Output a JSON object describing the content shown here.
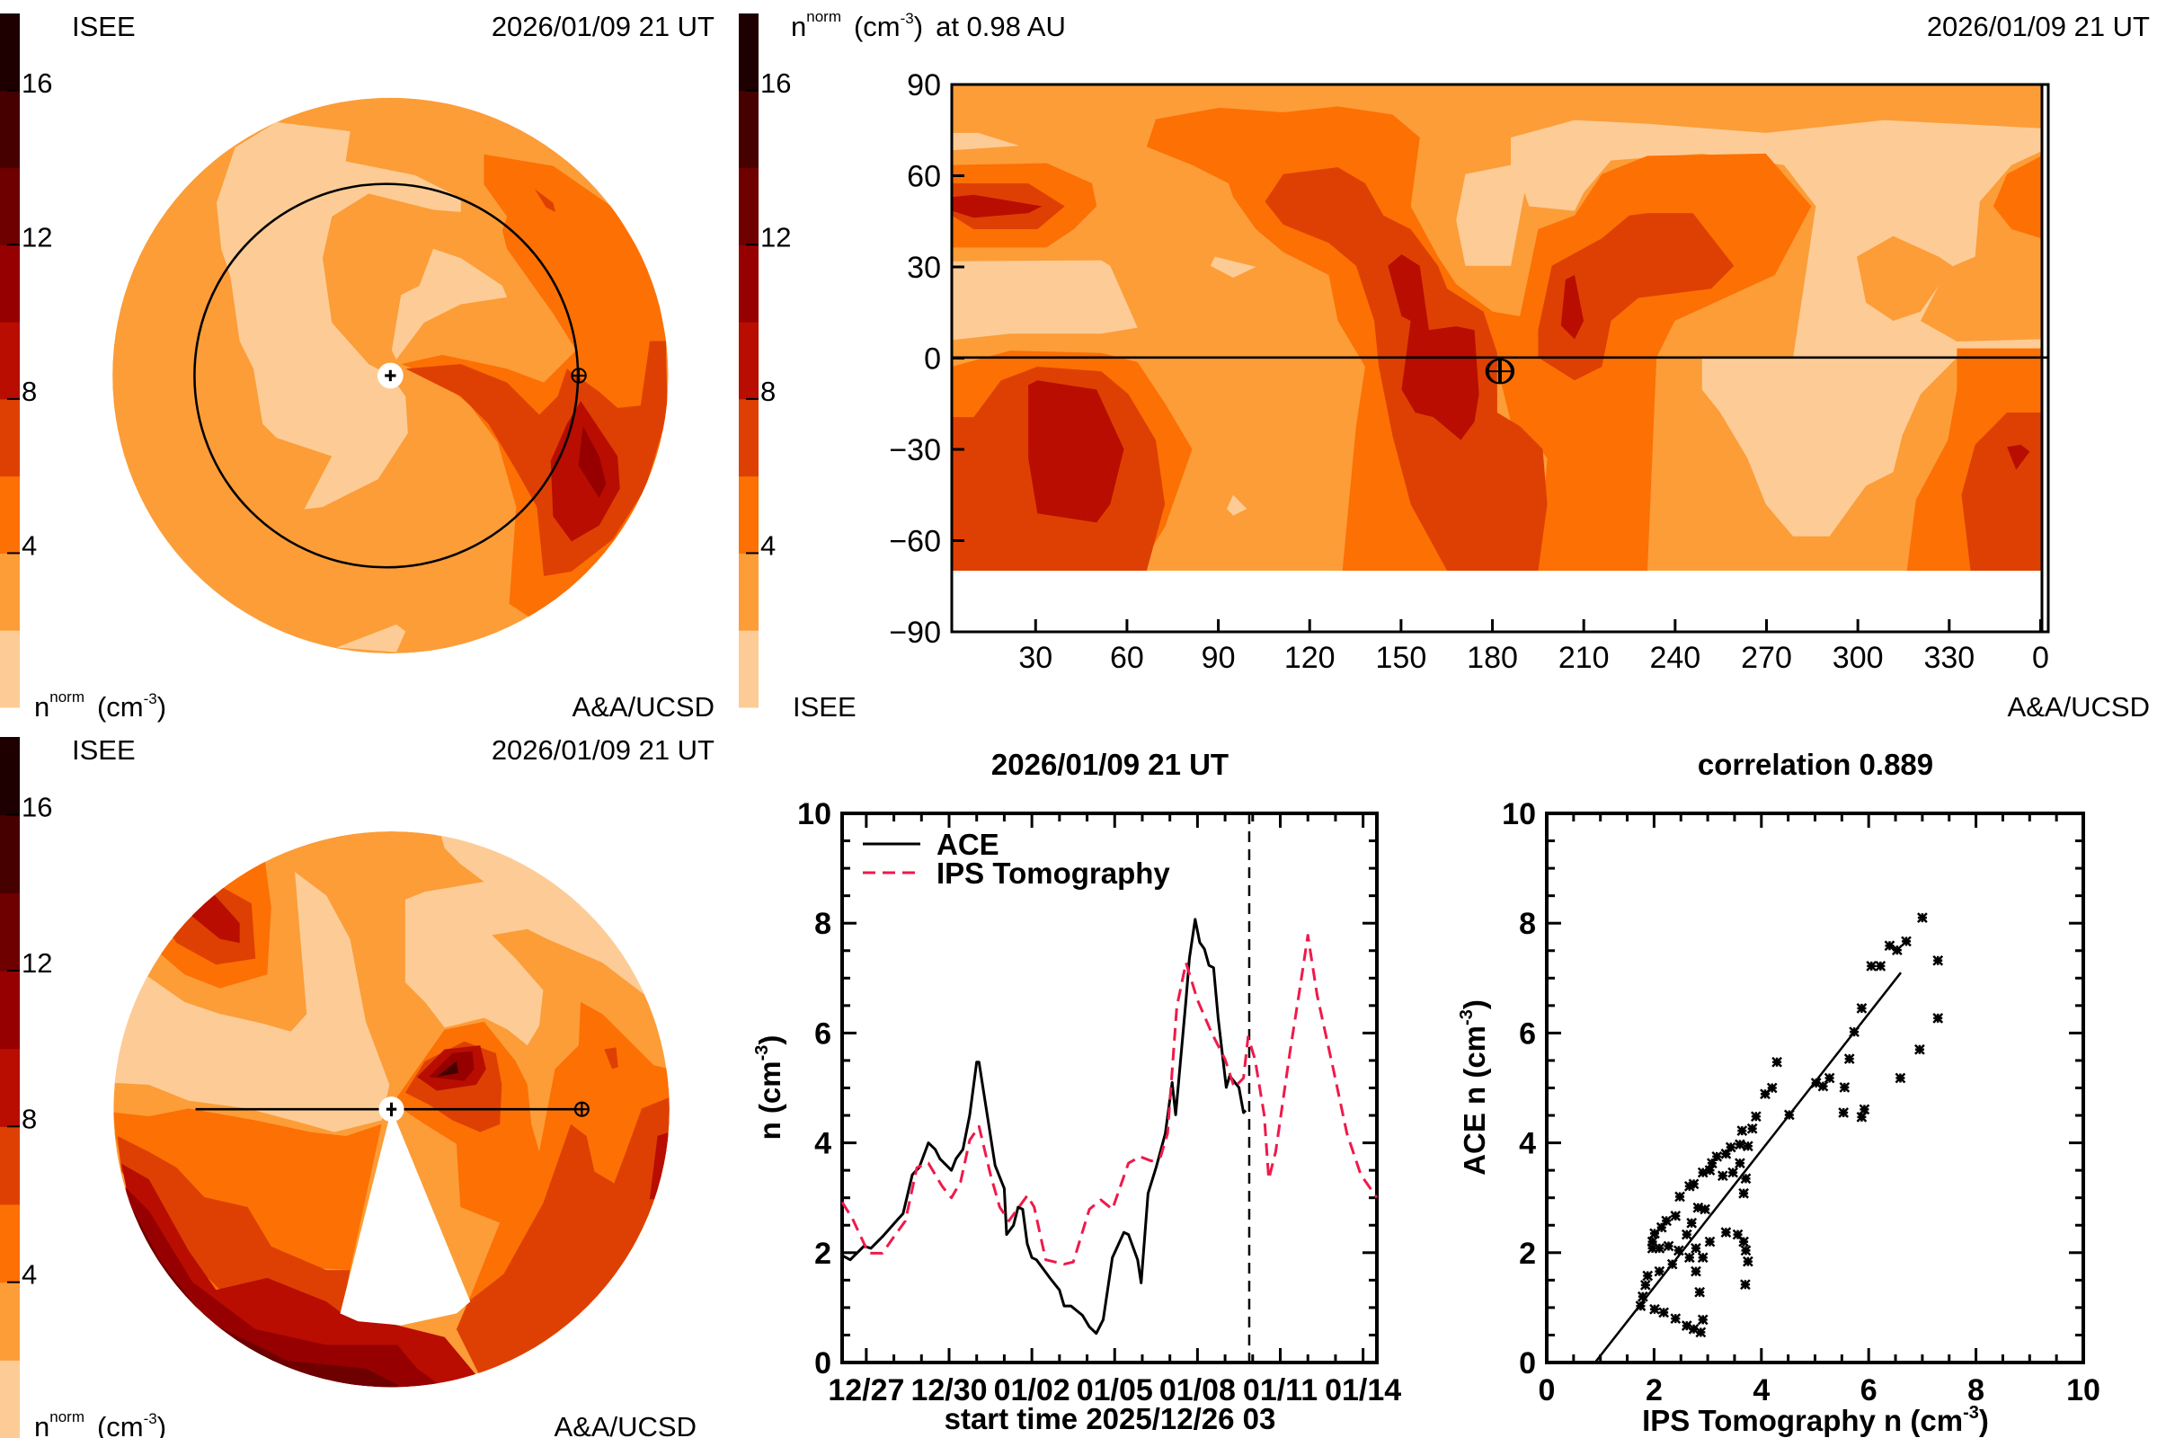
{
  "density_label": {
    "base": "n",
    "sup": "norm",
    "unit_open": "(cm",
    "unit_sup": "-3",
    "unit_close": ")"
  },
  "colorbar": {
    "levels": [
      0,
      2,
      4,
      6,
      8,
      10,
      12,
      14,
      16,
      18
    ],
    "colors": [
      "#fdcc96",
      "#fc9d38",
      "#fc7004",
      "#de4003",
      "#b80d00",
      "#960000",
      "#6e0000",
      "#460000",
      "#1e0000"
    ],
    "tick_labels": [
      "16",
      "12",
      "8",
      "4"
    ],
    "tick_values": [
      16,
      12,
      8,
      4
    ]
  },
  "top_left": {
    "source": "ISEE",
    "timestamp": "2026/01/09 21 UT",
    "credit": "A&A/UCSD"
  },
  "bottom_left": {
    "source": "ISEE",
    "timestamp": "2026/01/09 21 UT",
    "credit": "A&A/UCSD"
  },
  "map": {
    "title_suffix": "at 0.98 AU",
    "timestamp": "2026/01/09 21 UT",
    "source": "ISEE",
    "credit": "A&A/UCSD",
    "lat_ticks": [
      "90",
      "60",
      "30",
      "0",
      "−30",
      "−60",
      "−90"
    ],
    "lat_values": [
      90,
      60,
      30,
      0,
      -30,
      -60,
      -90
    ],
    "lon_ticks": [
      "30",
      "60",
      "90",
      "120",
      "150",
      "180",
      "210",
      "240",
      "270",
      "300",
      "330",
      "0"
    ],
    "lon_values": [
      30,
      60,
      90,
      120,
      150,
      180,
      210,
      240,
      270,
      300,
      330,
      360
    ]
  },
  "chart_data": [
    {
      "type": "line",
      "title": "2026/01/09 21 UT",
      "xlabel": "start time 2025/12/26 03",
      "ylabel": {
        "base": "n (cm",
        "sup": "-3",
        "close": ")"
      },
      "xlim": [
        "2025-12-26 03",
        "2026-01-14 12"
      ],
      "ylim": [
        0,
        10
      ],
      "y_ticks": [
        "0",
        "2",
        "4",
        "6",
        "8",
        "10"
      ],
      "x_tick_labels": [
        "12/27",
        "12/30",
        "01/02",
        "01/05",
        "01/08",
        "01/11",
        "01/14"
      ],
      "x_tick_dates": [
        "2025-12-27 00",
        "2025-12-30 00",
        "2026-01-02 00",
        "2026-01-05 00",
        "2026-01-08 00",
        "2026-01-11 00",
        "2026-01-14 00"
      ],
      "current_time": "2026-01-09 21",
      "legend": "top-left",
      "series": [
        {
          "name": "ACE",
          "color": "#000000",
          "style": "solid",
          "x": [
            "2025-12-26 03",
            "2025-12-26 10",
            "2025-12-26 22",
            "2025-12-27 04",
            "2025-12-27 14",
            "2025-12-28 04",
            "2025-12-28 08",
            "2025-12-28 16",
            "2025-12-28 22",
            "2025-12-29 06",
            "2025-12-29 12",
            "2025-12-29 16",
            "2025-12-30 02",
            "2025-12-30 06",
            "2025-12-30 12",
            "2025-12-30 18",
            "2025-12-31 00",
            "2025-12-31 02",
            "2025-12-31 16",
            "2026-01-01 00",
            "2026-01-01 02",
            "2026-01-01 08",
            "2026-01-01 12",
            "2026-01-01 16",
            "2026-01-01 20",
            "2026-01-02 00",
            "2026-01-02 04",
            "2026-01-02 16",
            "2026-01-03 00",
            "2026-01-03 04",
            "2026-01-03 10",
            "2026-01-03 20",
            "2026-01-04 02",
            "2026-01-04 08",
            "2026-01-04 14",
            "2026-01-04 22",
            "2026-01-05 08",
            "2026-01-05 12",
            "2026-01-05 20",
            "2026-01-05 23",
            "2026-01-06 05",
            "2026-01-06 12",
            "2026-01-06 20",
            "2026-01-07 02",
            "2026-01-07 05",
            "2026-01-07 14",
            "2026-01-07 17",
            "2026-01-07 22",
            "2026-01-08 02",
            "2026-01-08 06",
            "2026-01-08 10",
            "2026-01-08 14",
            "2026-01-08 18",
            "2026-01-09 01",
            "2026-01-09 04",
            "2026-01-09 12",
            "2026-01-09 16",
            "2026-01-09 18"
          ],
          "y": [
            1.95,
            1.87,
            2.12,
            2.08,
            2.29,
            2.62,
            2.71,
            3.42,
            3.55,
            4.0,
            3.88,
            3.71,
            3.5,
            3.71,
            3.88,
            4.51,
            5.47,
            5.47,
            3.59,
            3.17,
            2.33,
            2.5,
            2.83,
            2.79,
            2.16,
            1.91,
            1.87,
            1.53,
            1.32,
            1.03,
            1.03,
            0.86,
            0.65,
            0.53,
            0.78,
            1.91,
            2.37,
            2.33,
            1.87,
            1.45,
            3.08,
            3.55,
            4.17,
            5.1,
            4.51,
            6.6,
            7.36,
            8.07,
            7.65,
            7.53,
            7.23,
            7.19,
            6.27,
            5.01,
            5.22,
            5.01,
            4.55,
            4.59
          ]
        },
        {
          "name": "IPS Tomography",
          "color": "#ee1a4a",
          "style": "dashed",
          "x": [
            "2025-12-26 03",
            "2025-12-26 12",
            "2025-12-27 02",
            "2025-12-27 14",
            "2025-12-28 00",
            "2025-12-28 10",
            "2025-12-28 20",
            "2025-12-29 06",
            "2025-12-29 18",
            "2025-12-30 02",
            "2025-12-30 10",
            "2025-12-30 18",
            "2025-12-31 02",
            "2025-12-31 12",
            "2025-12-31 20",
            "2026-01-01 04",
            "2026-01-01 20",
            "2026-01-02 02",
            "2026-01-02 12",
            "2026-01-03 04",
            "2026-01-03 12",
            "2026-01-04 02",
            "2026-01-04 12",
            "2026-01-04 22",
            "2026-01-05 12",
            "2026-01-05 22",
            "2026-01-06 08",
            "2026-01-06 16",
            "2026-01-06 22",
            "2026-01-07 06",
            "2026-01-07 14",
            "2026-01-08 00",
            "2026-01-08 12",
            "2026-01-09 00",
            "2026-01-09 08",
            "2026-01-09 16",
            "2026-01-09 20",
            "2026-01-10 02",
            "2026-01-10 10",
            "2026-01-10 14",
            "2026-01-10 20",
            "2026-01-11 08",
            "2026-01-11 18",
            "2026-01-12 00",
            "2026-01-12 08",
            "2026-01-12 22",
            "2026-01-13 10",
            "2026-01-13 22",
            "2026-01-14 12"
          ],
          "y": [
            2.92,
            2.62,
            1.99,
            1.99,
            2.29,
            2.58,
            3.55,
            3.63,
            3.21,
            3.0,
            3.29,
            4.05,
            4.3,
            3.42,
            2.83,
            2.58,
            3.04,
            2.83,
            1.87,
            1.79,
            1.83,
            2.79,
            2.96,
            2.79,
            3.63,
            3.75,
            3.67,
            3.75,
            4.17,
            6.48,
            7.28,
            6.6,
            6.02,
            5.52,
            5.01,
            5.18,
            5.93,
            5.52,
            4.51,
            3.34,
            3.84,
            5.6,
            6.94,
            7.78,
            6.69,
            5.35,
            4.17,
            3.42,
            3.0
          ]
        }
      ]
    },
    {
      "type": "scatter",
      "title": "correlation 0.889",
      "xlabel": {
        "base": "IPS Tomography n (cm",
        "sup": "-3",
        "close": ")"
      },
      "ylabel": {
        "base": "ACE n (cm",
        "sup": "-3",
        "close": ")"
      },
      "xlim": [
        0,
        10
      ],
      "ylim": [
        0,
        10
      ],
      "x_ticks": [
        "0",
        "2",
        "4",
        "6",
        "8",
        "10"
      ],
      "y_ticks": [
        "0",
        "2",
        "4",
        "6",
        "8",
        "10"
      ],
      "fit_line": {
        "x": [
          0.9,
          6.6
        ],
        "y": [
          0,
          7.1
        ]
      },
      "points": [
        [
          7.0,
          8.1
        ],
        [
          6.7,
          7.67
        ],
        [
          6.53,
          7.51
        ],
        [
          6.39,
          7.59
        ],
        [
          6.22,
          7.22
        ],
        [
          6.05,
          7.22
        ],
        [
          7.29,
          7.32
        ],
        [
          7.29,
          6.27
        ],
        [
          6.95,
          5.7
        ],
        [
          6.59,
          5.18
        ],
        [
          5.87,
          6.45
        ],
        [
          5.73,
          6.02
        ],
        [
          5.64,
          5.53
        ],
        [
          5.55,
          5.01
        ],
        [
          5.53,
          4.55
        ],
        [
          5.92,
          4.61
        ],
        [
          5.87,
          4.47
        ],
        [
          5.27,
          5.18
        ],
        [
          5.15,
          5.03
        ],
        [
          5.02,
          5.09
        ],
        [
          4.52,
          4.51
        ],
        [
          4.29,
          5.47
        ],
        [
          4.2,
          5.0
        ],
        [
          4.07,
          4.89
        ],
        [
          3.9,
          4.48
        ],
        [
          3.83,
          4.26
        ],
        [
          3.64,
          4.22
        ],
        [
          3.75,
          3.94
        ],
        [
          3.6,
          3.97
        ],
        [
          3.43,
          3.92
        ],
        [
          3.34,
          3.8
        ],
        [
          3.17,
          3.75
        ],
        [
          3.08,
          3.63
        ],
        [
          3.04,
          3.5
        ],
        [
          2.91,
          3.46
        ],
        [
          3.6,
          3.63
        ],
        [
          3.47,
          3.46
        ],
        [
          3.28,
          3.4
        ],
        [
          3.71,
          3.35
        ],
        [
          3.67,
          3.08
        ],
        [
          2.74,
          3.25
        ],
        [
          2.66,
          3.21
        ],
        [
          2.48,
          3.02
        ],
        [
          2.95,
          2.79
        ],
        [
          2.82,
          2.82
        ],
        [
          2.4,
          2.67
        ],
        [
          2.23,
          2.58
        ],
        [
          2.14,
          2.46
        ],
        [
          2.01,
          2.35
        ],
        [
          1.97,
          2.2
        ],
        [
          1.97,
          2.08
        ],
        [
          2.1,
          2.08
        ],
        [
          2.27,
          2.12
        ],
        [
          2.46,
          2.04
        ],
        [
          2.61,
          2.33
        ],
        [
          2.7,
          2.54
        ],
        [
          2.66,
          1.91
        ],
        [
          2.78,
          2.08
        ],
        [
          2.91,
          1.91
        ],
        [
          2.78,
          1.66
        ],
        [
          2.85,
          1.28
        ],
        [
          3.04,
          2.2
        ],
        [
          3.34,
          2.37
        ],
        [
          3.56,
          2.33
        ],
        [
          3.67,
          2.2
        ],
        [
          3.71,
          2.04
        ],
        [
          3.75,
          1.84
        ],
        [
          3.7,
          1.42
        ],
        [
          2.34,
          1.79
        ],
        [
          2.1,
          1.66
        ],
        [
          1.88,
          1.58
        ],
        [
          1.84,
          1.41
        ],
        [
          1.79,
          1.2
        ],
        [
          1.75,
          1.03
        ],
        [
          2.01,
          0.97
        ],
        [
          2.18,
          0.91
        ],
        [
          2.4,
          0.8
        ],
        [
          2.61,
          0.67
        ],
        [
          2.74,
          0.61
        ],
        [
          2.87,
          0.55
        ],
        [
          2.91,
          0.78
        ]
      ]
    }
  ]
}
